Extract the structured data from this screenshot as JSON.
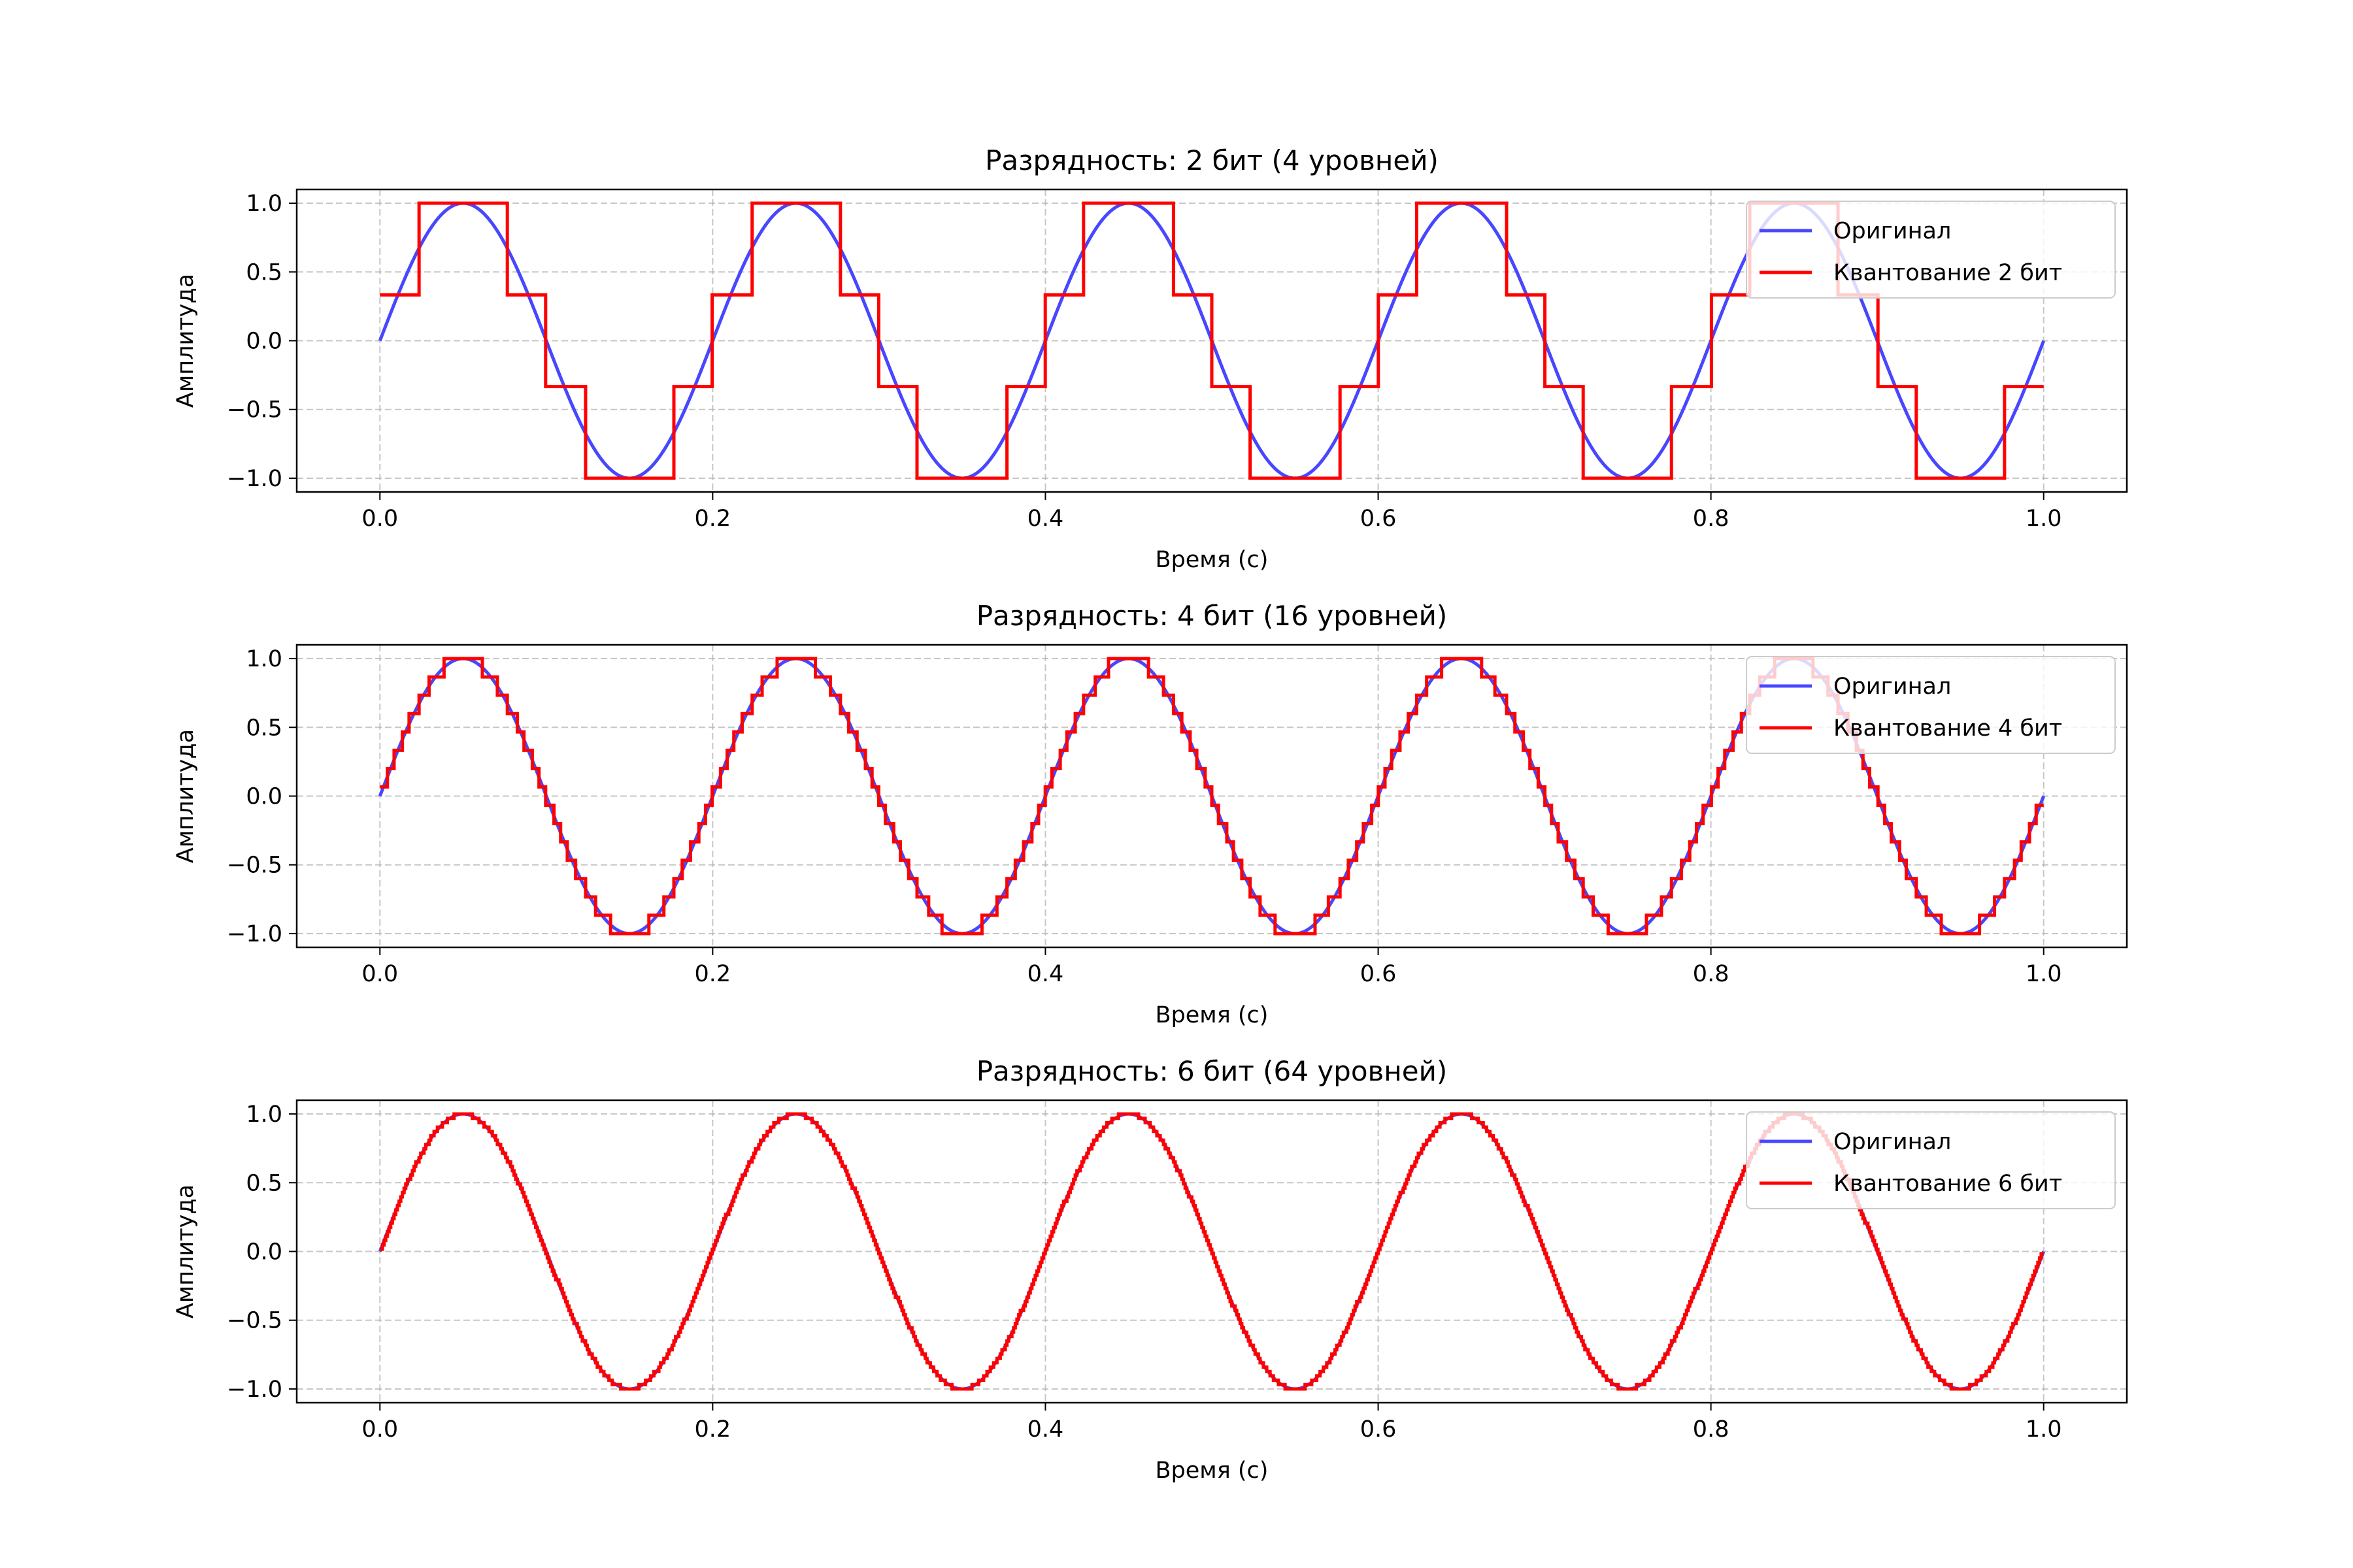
{
  "chart_data": [
    {
      "type": "line",
      "title": "Разрядность: 2 бит (4 уровней)",
      "xlabel": "Время (с)",
      "ylabel": "Амплитуда",
      "xlim": [
        -0.05,
        1.05
      ],
      "ylim": [
        -1.1,
        1.1
      ],
      "xticks": [
        "0.0",
        "0.2",
        "0.4",
        "0.6",
        "0.8",
        "1.0"
      ],
      "yticks": [
        "1.0",
        "0.5",
        "0.0",
        "−0.5",
        "−1.0"
      ],
      "grid": true,
      "legend_position": "upper right",
      "signal": {
        "function": "sine",
        "frequency_hz": 5,
        "amplitude": 1,
        "t_start": 0,
        "t_end": 1
      },
      "quantization": {
        "bits": 2,
        "levels": 4,
        "level_values": [
          -1.0,
          -0.333,
          0.333,
          1.0
        ]
      },
      "series": [
        {
          "name": "Оригинал",
          "color": "#4747ff",
          "role": "original"
        },
        {
          "name": "Квантование 2 бит",
          "color": "#ff0000",
          "role": "quantized"
        }
      ]
    },
    {
      "type": "line",
      "title": "Разрядность: 4 бит (16 уровней)",
      "xlabel": "Время (с)",
      "ylabel": "Амплитуда",
      "xlim": [
        -0.05,
        1.05
      ],
      "ylim": [
        -1.1,
        1.1
      ],
      "xticks": [
        "0.0",
        "0.2",
        "0.4",
        "0.6",
        "0.8",
        "1.0"
      ],
      "yticks": [
        "1.0",
        "0.5",
        "0.0",
        "−0.5",
        "−1.0"
      ],
      "grid": true,
      "legend_position": "upper right",
      "signal": {
        "function": "sine",
        "frequency_hz": 5,
        "amplitude": 1,
        "t_start": 0,
        "t_end": 1
      },
      "quantization": {
        "bits": 4,
        "levels": 16
      },
      "series": [
        {
          "name": "Оригинал",
          "color": "#4747ff",
          "role": "original"
        },
        {
          "name": "Квантование 4 бит",
          "color": "#ff0000",
          "role": "quantized"
        }
      ]
    },
    {
      "type": "line",
      "title": "Разрядность: 6 бит (64 уровней)",
      "xlabel": "Время (с)",
      "ylabel": "Амплитуда",
      "xlim": [
        -0.05,
        1.05
      ],
      "ylim": [
        -1.1,
        1.1
      ],
      "xticks": [
        "0.0",
        "0.2",
        "0.4",
        "0.6",
        "0.8",
        "1.0"
      ],
      "yticks": [
        "1.0",
        "0.5",
        "0.0",
        "−0.5",
        "−1.0"
      ],
      "grid": true,
      "legend_position": "upper right",
      "signal": {
        "function": "sine",
        "frequency_hz": 5,
        "amplitude": 1,
        "t_start": 0,
        "t_end": 1
      },
      "quantization": {
        "bits": 6,
        "levels": 64
      },
      "series": [
        {
          "name": "Оригинал",
          "color": "#4747ff",
          "role": "original"
        },
        {
          "name": "Квантование 6 бит",
          "color": "#ff0000",
          "role": "quantized"
        }
      ]
    }
  ]
}
